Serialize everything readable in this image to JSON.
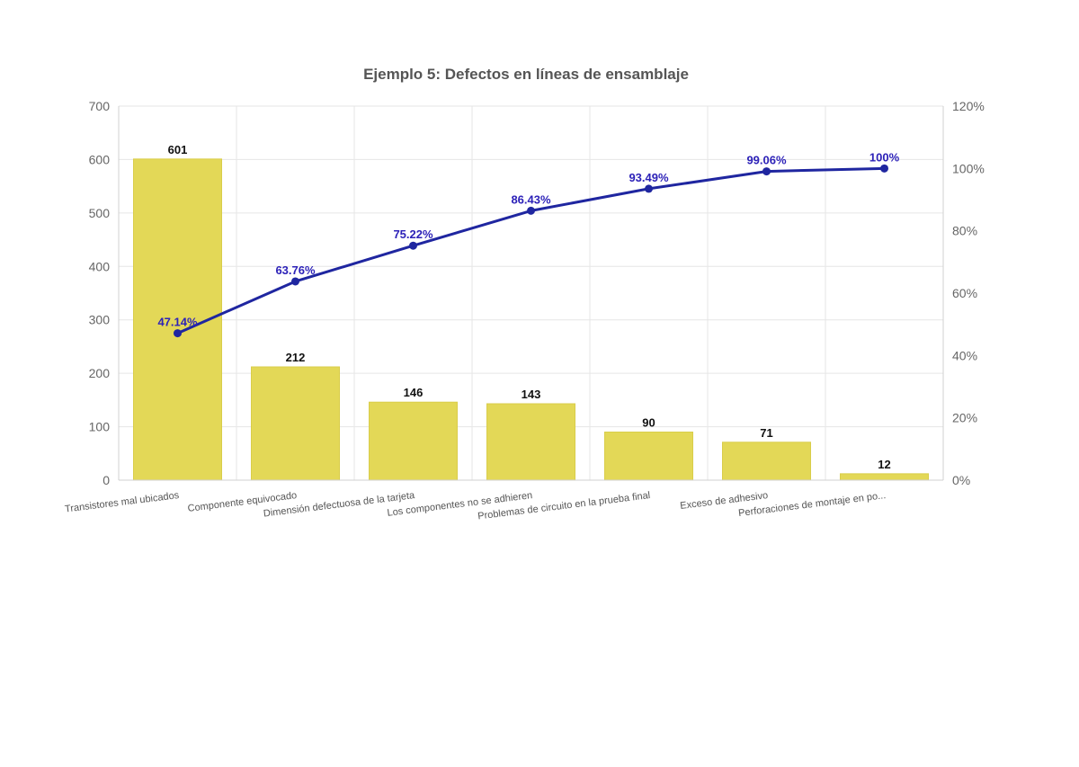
{
  "chart_data": {
    "type": "bar",
    "title": "Ejemplo 5: Defectos en líneas de ensamblaje",
    "categories": [
      "Transistores mal ubicados",
      "Componente equivocado",
      "Dimensión defectuosa de la tarjeta",
      "Los componentes no se adhieren",
      "Problemas de circuito en la prueba final",
      "Exceso de adhesivo",
      "Perforaciones de montaje en po..."
    ],
    "series": [
      {
        "type": "bar",
        "axis": "left",
        "values": [
          601,
          212,
          146,
          143,
          90,
          71,
          12
        ],
        "labels": [
          "601",
          "212",
          "146",
          "143",
          "90",
          "71",
          "12"
        ]
      },
      {
        "type": "line",
        "axis": "right",
        "values": [
          47.14,
          63.76,
          75.22,
          86.43,
          93.49,
          99.06,
          100
        ],
        "labels": [
          "47.14%",
          "63.76%",
          "75.22%",
          "86.43%",
          "93.49%",
          "99.06%",
          "100%"
        ]
      }
    ],
    "ylim": [
      0,
      700
    ],
    "y_ticks": [
      "0",
      "100",
      "200",
      "300",
      "400",
      "500",
      "600",
      "700"
    ],
    "y2lim": [
      0,
      120
    ],
    "y2_ticks": [
      "0%",
      "20%",
      "40%",
      "60%",
      "80%",
      "100%",
      "120%"
    ],
    "grid": true,
    "colors": {
      "bar": "#e3d857",
      "bar_stroke": "#d9cd4a",
      "line": "#1f26a0",
      "line_label": "#2d22b8"
    }
  }
}
